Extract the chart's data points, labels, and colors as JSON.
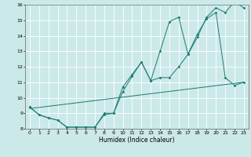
{
  "xlabel": "Humidex (Indice chaleur)",
  "bg_color": "#cce9e9",
  "grid_color": "#ffffff",
  "line_color": "#1a7a6e",
  "xlim": [
    -0.5,
    23.5
  ],
  "ylim": [
    8,
    16
  ],
  "xticks": [
    0,
    1,
    2,
    3,
    4,
    5,
    6,
    7,
    8,
    9,
    10,
    11,
    12,
    13,
    14,
    15,
    16,
    17,
    18,
    19,
    20,
    21,
    22,
    23
  ],
  "yticks": [
    8,
    9,
    10,
    11,
    12,
    13,
    14,
    15,
    16
  ],
  "series1_x": [
    0,
    1,
    2,
    3,
    4,
    5,
    6,
    7,
    8,
    9,
    10,
    11,
    12,
    13,
    14,
    15,
    16,
    17,
    18,
    19,
    20,
    21,
    22,
    23
  ],
  "series1_y": [
    9.4,
    8.9,
    8.7,
    8.55,
    8.1,
    8.1,
    8.1,
    8.1,
    9.0,
    9.0,
    10.7,
    11.5,
    12.3,
    11.1,
    13.0,
    14.9,
    15.2,
    12.8,
    13.9,
    15.2,
    15.8,
    15.5,
    16.2,
    15.8
  ],
  "series2_x": [
    0,
    1,
    2,
    3,
    4,
    5,
    6,
    7,
    8,
    9,
    10,
    11,
    12,
    13,
    14,
    15,
    16,
    17,
    18,
    19,
    20,
    21,
    22,
    23
  ],
  "series2_y": [
    9.4,
    8.9,
    8.7,
    8.55,
    8.1,
    8.1,
    8.1,
    8.1,
    8.9,
    9.0,
    10.4,
    11.4,
    12.3,
    11.1,
    11.3,
    11.3,
    12.0,
    12.8,
    14.1,
    15.1,
    15.5,
    11.3,
    10.8,
    11.0
  ],
  "series3_x": [
    0,
    23
  ],
  "series3_y": [
    9.3,
    11.0
  ]
}
